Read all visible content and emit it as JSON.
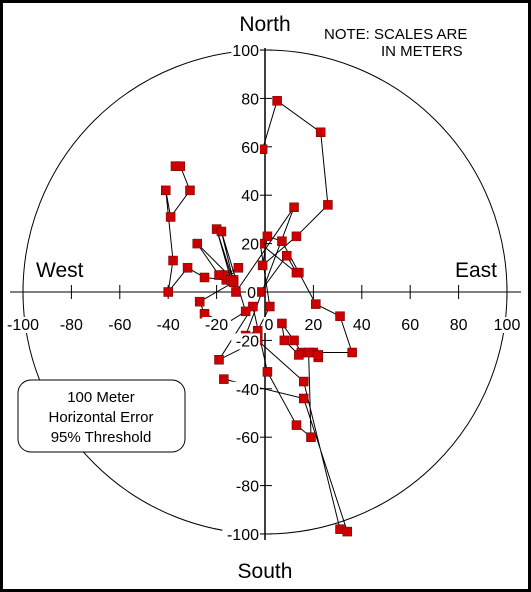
{
  "chart_data": {
    "type": "scatter",
    "subtype": "polar-horizontal-error",
    "note_line1": "NOTE:  SCALES ARE",
    "note_line2": "IN METERS",
    "directions": {
      "north": "North",
      "south": "South",
      "east": "East",
      "west": "West"
    },
    "x_range": [
      -100,
      100
    ],
    "y_range": [
      -100,
      100
    ],
    "x_ticks": [
      -100,
      -80,
      -60,
      -40,
      -20,
      0,
      20,
      40,
      60,
      80,
      100
    ],
    "y_ticks": [
      100,
      80,
      60,
      40,
      20,
      0,
      -20,
      -40,
      -60,
      -80,
      -100
    ],
    "threshold_radius": 100,
    "threshold_label_lines": [
      "100 Meter",
      "Horizontal Error",
      "95% Threshold"
    ],
    "point_color": "#cc0000",
    "series": [
      {
        "points": [
          [
            -1,
            59
          ],
          [
            5,
            79
          ],
          [
            23,
            66
          ],
          [
            26,
            36
          ],
          [
            13,
            23
          ],
          [
            -1,
            11
          ],
          [
            1,
            23
          ],
          [
            7,
            21
          ],
          [
            14,
            8
          ],
          [
            21,
            -5
          ],
          [
            31,
            -10
          ],
          [
            36,
            -25
          ],
          [
            20,
            -25
          ],
          [
            15,
            -25
          ],
          [
            12,
            -20
          ],
          [
            7,
            -13
          ],
          [
            8,
            -20
          ],
          [
            14,
            -26
          ],
          [
            22,
            -27
          ],
          [
            22,
            -26
          ],
          [
            18,
            -25
          ],
          [
            19,
            -60
          ],
          [
            13,
            -55
          ],
          [
            1,
            -33
          ],
          [
            -5,
            -6
          ],
          [
            -19,
            -28
          ],
          [
            -3,
            -20
          ],
          [
            16,
            -37
          ],
          [
            31,
            -98
          ],
          [
            34,
            -99
          ],
          [
            16,
            -44
          ],
          [
            -17,
            -36
          ]
        ]
      },
      {
        "points": [
          [
            -37,
            52
          ],
          [
            -35,
            52
          ],
          [
            -31,
            42
          ],
          [
            -39,
            31
          ],
          [
            -41,
            42
          ],
          [
            -38,
            13
          ],
          [
            -40,
            0
          ],
          [
            -32,
            10
          ],
          [
            -25,
            6
          ],
          [
            -16,
            5
          ],
          [
            -11,
            10
          ],
          [
            -17,
            7
          ],
          [
            -13,
            5
          ],
          [
            -28,
            20
          ],
          [
            -19,
            7
          ],
          [
            -14,
            5
          ],
          [
            -20,
            26
          ],
          [
            -13,
            4
          ],
          [
            -27,
            -4
          ],
          [
            -25,
            -9
          ],
          [
            -16,
            -13
          ],
          [
            -8,
            -8
          ],
          [
            -18,
            25
          ],
          [
            -12,
            0
          ],
          [
            12,
            35
          ],
          [
            -8,
            -18
          ],
          [
            -3,
            -16
          ],
          [
            2,
            -6
          ],
          [
            -2,
            20
          ],
          [
            13,
            8
          ],
          [
            9,
            15
          ],
          [
            -2,
            0
          ]
        ]
      }
    ]
  }
}
